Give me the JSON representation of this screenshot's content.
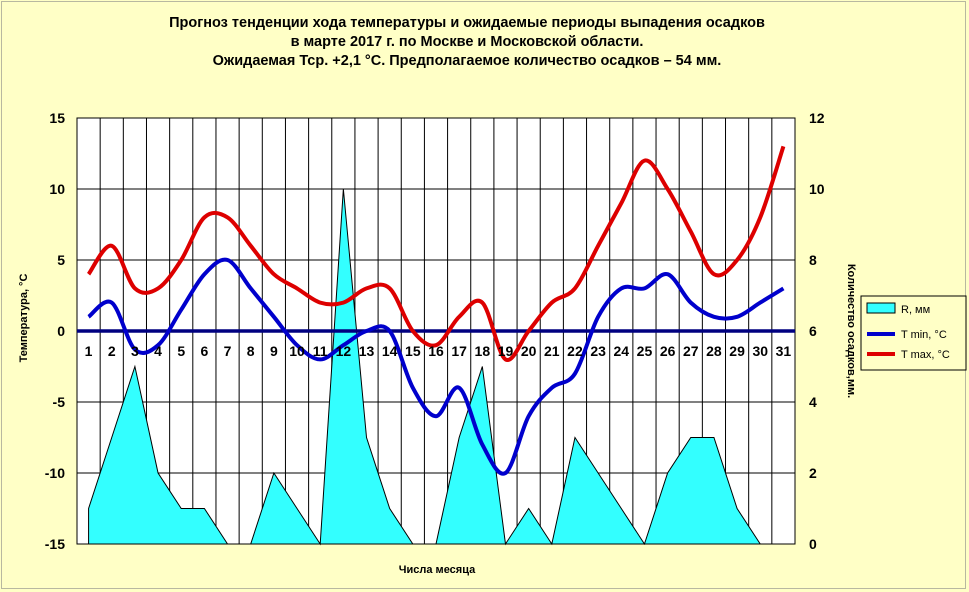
{
  "title_lines": [
    "Прогноз тенденции хода температуры и ожидаемые периоды выпадения осадков",
    "в марте 2017 г. по Москве и Московской области.",
    "Ожидаемая Тср. +2,1 °С. Предполагаемое количество осадков – 54 мм."
  ],
  "chart_data": {
    "type": "line",
    "title": "Прогноз тенденции хода температуры и ожидаемые периоды выпадения осадков в марте 2017 г. по Москве и Московской области. Ожидаемая Тср. +2,1 °С. Предполагаемое количество осадков – 54 мм.",
    "xlabel": "Числа месяца",
    "ylabel": "Температура, °С",
    "y2label": "Количество осадков,мм.",
    "categories": [
      "1",
      "2",
      "3",
      "4",
      "5",
      "6",
      "7",
      "8",
      "9",
      "10",
      "11",
      "12",
      "13",
      "14",
      "15",
      "16",
      "17",
      "18",
      "19",
      "20",
      "21",
      "22",
      "23",
      "24",
      "25",
      "26",
      "27",
      "28",
      "29",
      "30",
      "31"
    ],
    "ylim": [
      -15,
      15
    ],
    "yticks": [
      "15",
      "10",
      "5",
      "0",
      "-5",
      "-10",
      "-15"
    ],
    "y2lim": [
      0,
      12
    ],
    "y2ticks": [
      "12",
      "10",
      "8",
      "6",
      "4",
      "2",
      "0"
    ],
    "grid": true,
    "legend_position": "right",
    "series": [
      {
        "name": "R, мм",
        "type": "area",
        "axis": "right",
        "color": "#33ffff",
        "values": [
          1,
          3,
          5,
          2,
          1,
          1,
          0,
          0,
          2,
          1,
          0,
          10,
          3,
          1,
          0,
          0,
          3,
          5,
          0,
          1,
          0,
          3,
          2,
          1,
          0,
          2,
          3,
          3,
          1,
          0,
          0
        ]
      },
      {
        "name": "T min, °С",
        "type": "line",
        "axis": "left",
        "color": "#0000cc",
        "values": [
          1,
          2,
          -1.3,
          -1,
          1.5,
          4,
          5,
          3,
          1,
          -1,
          -2,
          -1,
          0,
          0,
          -4,
          -6,
          -4,
          -8,
          -10,
          -6,
          -4,
          -3,
          1,
          3,
          3,
          4,
          2,
          1,
          1,
          2,
          3
        ]
      },
      {
        "name": "T max, °С",
        "type": "line",
        "axis": "left",
        "color": "#dd0000",
        "values": [
          4,
          6,
          3,
          3,
          5,
          8,
          8,
          6,
          4,
          3,
          2,
          2,
          3,
          3,
          0,
          -1,
          1,
          2,
          -2,
          0,
          2,
          3,
          6,
          9,
          12,
          10,
          7,
          4,
          5,
          8,
          13
        ]
      }
    ]
  }
}
